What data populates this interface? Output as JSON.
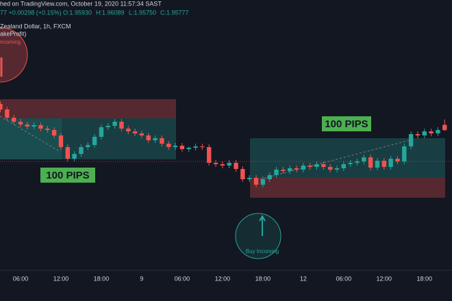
{
  "header": {
    "published": "hed on TradingView.com, October 19, 2020 11:57:34 SAST",
    "change": "77 +0.00298 (+0.15%)",
    "open": "O:1.95930",
    "high": "H:1.96089",
    "low": "L:1.95750",
    "close": "C:1.95777",
    "symbol": "Zealand Dollar, 1h, FXCM",
    "study": "akeProfit)"
  },
  "annotations": {
    "sell_signal": "ncoming",
    "buy_signal": "Buy Incoming",
    "left_target": "100 PIPS",
    "right_target": "100 PIPS"
  },
  "chart_data": {
    "type": "candlestick",
    "categories": [
      null,
      null,
      null,
      "06:00",
      null,
      null,
      null,
      null,
      null,
      "12:00",
      null,
      null,
      null,
      null,
      null,
      "18:00",
      null,
      null,
      null,
      null,
      null,
      "9",
      null,
      null,
      null,
      null,
      null,
      "06:00",
      null,
      null,
      null,
      null,
      null,
      "12:00",
      null,
      null,
      null,
      null,
      null,
      "18:00",
      null,
      null,
      null,
      null,
      null,
      "12",
      null,
      null,
      null,
      null,
      null,
      "06:00",
      null,
      null,
      null,
      null,
      null,
      "12:00",
      null,
      null,
      null,
      null,
      null,
      "18:00",
      null,
      null,
      null
    ],
    "open": [
      1.9654,
      1.9638,
      1.9614,
      1.9602,
      1.9594,
      1.9588,
      1.9592,
      1.9582,
      1.9578,
      1.9562,
      1.9528,
      1.9494,
      1.9508,
      1.9528,
      1.9534,
      1.9558,
      1.9586,
      1.959,
      1.9602,
      1.9582,
      1.9574,
      1.9568,
      1.9562,
      1.9548,
      1.9554,
      1.9538,
      1.9528,
      1.9532,
      1.9522,
      1.9526,
      1.953,
      1.9528,
      1.9482,
      1.9478,
      1.9474,
      1.9482,
      1.9464,
      1.9434,
      1.9438,
      1.9418,
      1.9434,
      1.9446,
      1.9462,
      1.9458,
      1.9466,
      1.9462,
      1.9474,
      1.947,
      1.9478,
      1.947,
      1.9462,
      1.9466,
      1.9478,
      1.9482,
      1.9486,
      1.9498,
      1.9468,
      1.9488,
      1.947,
      1.9494,
      1.9486,
      1.953,
      1.9566,
      1.9562,
      1.9574,
      1.9568,
      1.9593
    ],
    "high": [
      1.9662,
      1.9646,
      1.9622,
      1.961,
      1.9602,
      1.96,
      1.96,
      1.959,
      1.9586,
      1.957,
      1.9536,
      1.9516,
      1.9536,
      1.9542,
      1.9566,
      1.9594,
      1.9598,
      1.961,
      1.961,
      1.959,
      1.9582,
      1.9576,
      1.957,
      1.9562,
      1.9562,
      1.9546,
      1.954,
      1.954,
      1.953,
      1.9538,
      1.9538,
      1.9536,
      1.949,
      1.9486,
      1.949,
      1.949,
      1.9472,
      1.9446,
      1.9446,
      1.9442,
      1.9454,
      1.947,
      1.947,
      1.9474,
      1.9474,
      1.9482,
      1.9482,
      1.9486,
      1.9486,
      1.9478,
      1.9474,
      1.9486,
      1.949,
      1.9494,
      1.9506,
      1.9506,
      1.9496,
      1.9496,
      1.9502,
      1.9502,
      1.9538,
      1.9574,
      1.9574,
      1.9582,
      1.9582,
      1.9586,
      1.96089
    ],
    "low": [
      1.963,
      1.9606,
      1.9594,
      1.9586,
      1.958,
      1.958,
      1.9574,
      1.957,
      1.9554,
      1.952,
      1.9486,
      1.9486,
      1.95,
      1.952,
      1.9526,
      1.955,
      1.9578,
      1.9582,
      1.9574,
      1.9566,
      1.956,
      1.9554,
      1.954,
      1.954,
      1.953,
      1.952,
      1.952,
      1.9514,
      1.9514,
      1.9518,
      1.952,
      1.9474,
      1.947,
      1.9466,
      1.9466,
      1.9456,
      1.9426,
      1.9426,
      1.941,
      1.941,
      1.9426,
      1.9438,
      1.945,
      1.945,
      1.9454,
      1.9454,
      1.9462,
      1.9462,
      1.9462,
      1.9454,
      1.9454,
      1.9458,
      1.947,
      1.9474,
      1.9478,
      1.946,
      1.946,
      1.9462,
      1.9462,
      1.9478,
      1.9478,
      1.9522,
      1.9554,
      1.9554,
      1.956,
      1.956,
      1.9575
    ],
    "close": [
      1.9638,
      1.9614,
      1.9602,
      1.9594,
      1.9588,
      1.9592,
      1.9582,
      1.9578,
      1.9562,
      1.9528,
      1.9494,
      1.9508,
      1.9528,
      1.9534,
      1.9558,
      1.9586,
      1.959,
      1.9602,
      1.9582,
      1.9574,
      1.9568,
      1.9562,
      1.9548,
      1.9554,
      1.9538,
      1.9528,
      1.9532,
      1.9522,
      1.9526,
      1.953,
      1.9528,
      1.9482,
      1.9478,
      1.9474,
      1.9482,
      1.9464,
      1.9434,
      1.9438,
      1.9418,
      1.9434,
      1.9446,
      1.9462,
      1.9458,
      1.9466,
      1.9462,
      1.9474,
      1.947,
      1.9478,
      1.947,
      1.9462,
      1.9466,
      1.9478,
      1.9482,
      1.9486,
      1.9498,
      1.9468,
      1.9488,
      1.947,
      1.9494,
      1.9486,
      1.953,
      1.9566,
      1.9562,
      1.9574,
      1.9568,
      1.9578,
      1.95777
    ],
    "up_color": "#26a69a",
    "down_color": "#ef5350",
    "ylim": [
      1.9168,
      1.9958
    ]
  }
}
